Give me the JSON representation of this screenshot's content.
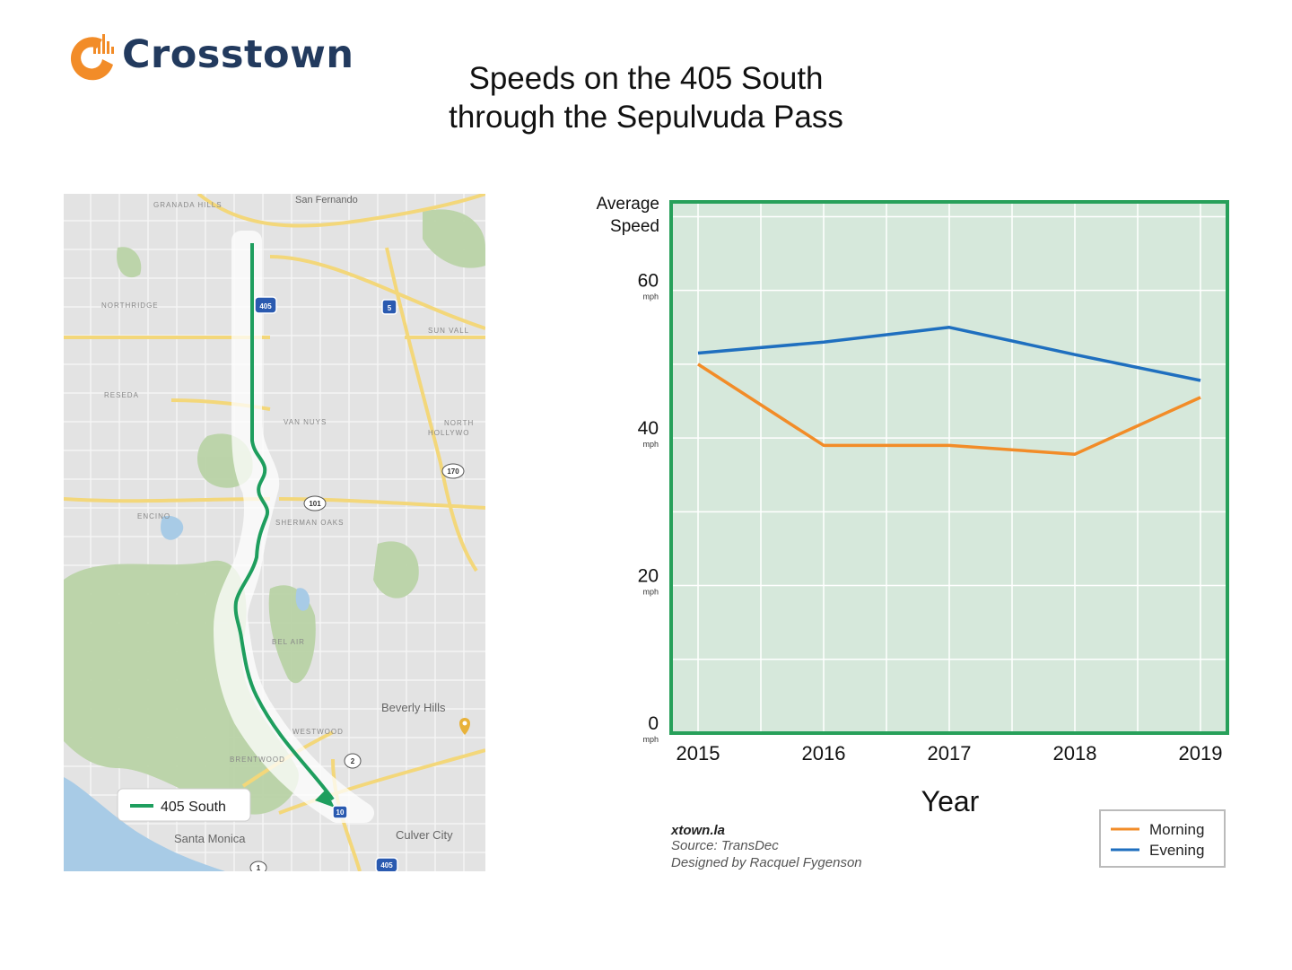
{
  "header": {
    "logo_text": "Crosstown",
    "title_line1": "Speeds on the 405 South",
    "title_line2": "through the Sepulvuda Pass"
  },
  "map": {
    "legend_label": "405 South",
    "route_color": "#1e9e5e",
    "places": {
      "granada_hills": "GRANADA HILLS",
      "san_fernando": "San Fernando",
      "northridge": "NORTHRIDGE",
      "sun_valley": "SUN VALL",
      "reseda": "RESEDA",
      "van_nuys": "VAN NUYS",
      "north_hollywood_1": "NORTH",
      "north_hollywood_2": "HOLLYWO",
      "encino": "ENCINO",
      "sherman_oaks": "SHERMAN OAKS",
      "bel_air": "BEL AIR",
      "beverly_hills": "Beverly Hills",
      "westwood": "WESTWOOD",
      "brentwood": "BRENTWOOD",
      "santa_monica": "Santa Monica",
      "culver_city": "Culver City"
    },
    "shields": {
      "i405_top": "405",
      "i5": "5",
      "ca170": "170",
      "us101": "101",
      "ca2": "2",
      "i10": "10",
      "i405_bottom": "405",
      "ca1": "1"
    }
  },
  "chart_data": {
    "type": "line",
    "title": "Speeds on the 405 South through the Sepulvuda Pass",
    "ylabel_line1": "Average",
    "ylabel_line2": "Speed",
    "xlabel": "Year",
    "y_unit": "mph",
    "categories": [
      "2015",
      "2016",
      "2017",
      "2018",
      "2019"
    ],
    "yticks": [
      0,
      20,
      40,
      60
    ],
    "ylim": [
      0,
      72
    ],
    "grid": true,
    "legend_position": "bottom-right",
    "series": [
      {
        "name": "Morning",
        "color": "#f28c28",
        "values": [
          50,
          39,
          39,
          37.8,
          45.5
        ]
      },
      {
        "name": "Evening",
        "color": "#1f6fbf",
        "values": [
          51.5,
          53,
          55,
          51.3,
          47.8
        ]
      }
    ],
    "credits": {
      "site": "xtown.la",
      "source": "Source: TransDec",
      "designer": "Designed by Racquel Fygenson"
    },
    "colors": {
      "plot_bg": "#d6e8db",
      "frame": "#27a05a",
      "grid": "#ffffff"
    }
  }
}
